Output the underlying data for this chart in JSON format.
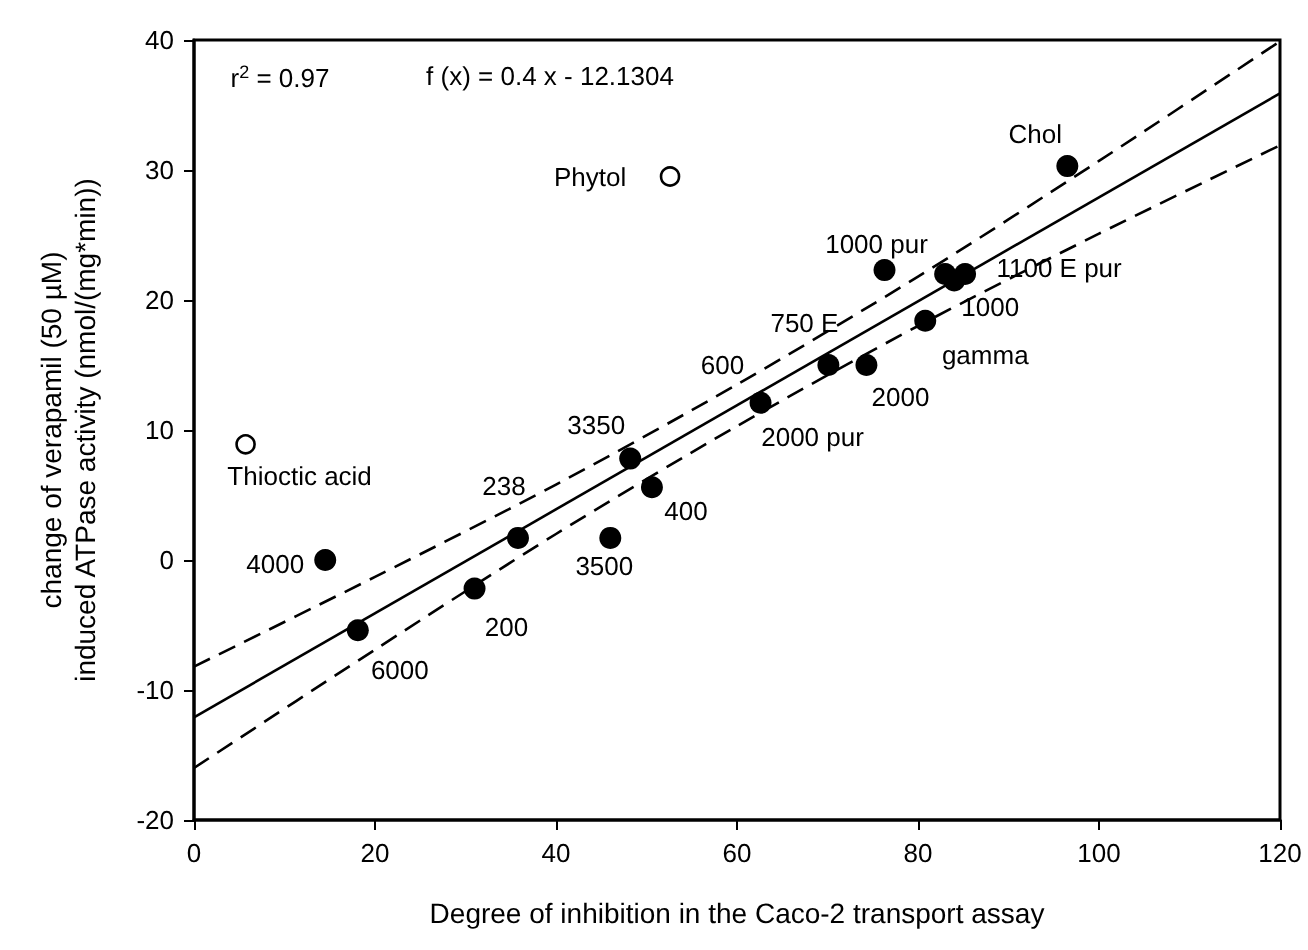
{
  "chart_data": {
    "type": "scatter",
    "xlabel": "Degree of inhibition in the Caco-2 transport assay",
    "ylabel": "change of verapamil (50 µM)\ninduced ATPase activity (nmol/(mg*min))",
    "xlim": [
      0,
      120
    ],
    "xticks": [
      0,
      20,
      40,
      60,
      80,
      100,
      120
    ],
    "ylim": [
      -20,
      40
    ],
    "yticks": [
      -20,
      -10,
      0,
      10,
      20,
      30,
      40
    ],
    "series": [
      {
        "marker": "circle",
        "color": "#000000",
        "x": [
          14.5,
          18.1,
          31.0,
          35.8,
          46.0,
          48.2,
          50.6,
          62.0,
          62.6,
          70.1,
          74.3,
          80.8,
          76.3,
          83.0,
          84.0,
          85.2,
          96.5
        ],
        "values": [
          0,
          -5.4,
          -2.2,
          1.7,
          1.7,
          7.8,
          5.6,
          null,
          12.1,
          15.0,
          15.0,
          18.4,
          22.3,
          22.0,
          21.5,
          22.0,
          30.3
        ]
      },
      {
        "marker": "circle",
        "color": "#ffffff",
        "x": [
          5.7,
          52.6
        ],
        "values": [
          8.9,
          29.5
        ]
      },
      {
        "type": "line",
        "marker": "none",
        "line_style": "solid",
        "color": "#000000",
        "x": [
          0,
          120
        ],
        "values": [
          -12.1,
          35.9
        ]
      },
      {
        "type": "line",
        "marker": "none",
        "line_style": "dashed",
        "color": "#000000",
        "x": [
          0,
          20,
          40,
          60,
          80,
          100,
          120
        ],
        "values": [
          -8.2,
          -1.3,
          5.8,
          13.5,
          21.8,
          30.7,
          39.9
        ]
      },
      {
        "type": "line",
        "marker": "none",
        "line_style": "dashed",
        "color": "#000000",
        "x": [
          0,
          20,
          40,
          60,
          80,
          100,
          120
        ],
        "values": [
          -16.0,
          -6.9,
          2.0,
          10.3,
          18.0,
          25.1,
          31.9
        ]
      }
    ],
    "annotations": [
      "r$^{2}$ = 0.97",
      "f (x) = 0.4 x - 12.1304",
      {
        "text": "Thioctic acid",
        "x": 5.7,
        "y": 8.9
      },
      {
        "text": "Phytol",
        "x": 52.6,
        "y": 29.5
      },
      {
        "text": "4000",
        "x": 14.5,
        "y": 0
      },
      {
        "text": "6000",
        "x": 18.1,
        "y": -5.4
      },
      {
        "text": "200",
        "x": 31.0,
        "y": -2.2
      },
      {
        "text": "238",
        "x": 35.8,
        "y": 1.7
      },
      {
        "text": "3500",
        "x": 46.0,
        "y": 1.7
      },
      {
        "text": "3350",
        "x": 48.2,
        "y": 7.8
      },
      {
        "text": "400",
        "x": 50.6,
        "y": 5.6
      },
      {
        "text": "600",
        "x": 62.6,
        "y": 12.1
      },
      {
        "text": "2000 pur",
        "x": 62.6,
        "y": 12.1
      },
      {
        "text": "750 E",
        "x": 70.1,
        "y": 15.0
      },
      {
        "text": "2000",
        "x": 74.3,
        "y": 15.0
      },
      {
        "text": "gamma",
        "x": 80.8,
        "y": 18.4
      },
      {
        "text": "1000 pur",
        "x": 76.3,
        "y": 22.3
      },
      {
        "text": "1000",
        "x": 84.0,
        "y": 21.5
      },
      {
        "text": "1100 E pur",
        "x": 85.2,
        "y": 22.0
      },
      {
        "text": "Chol",
        "x": 96.5,
        "y": 30.3
      }
    ]
  }
}
